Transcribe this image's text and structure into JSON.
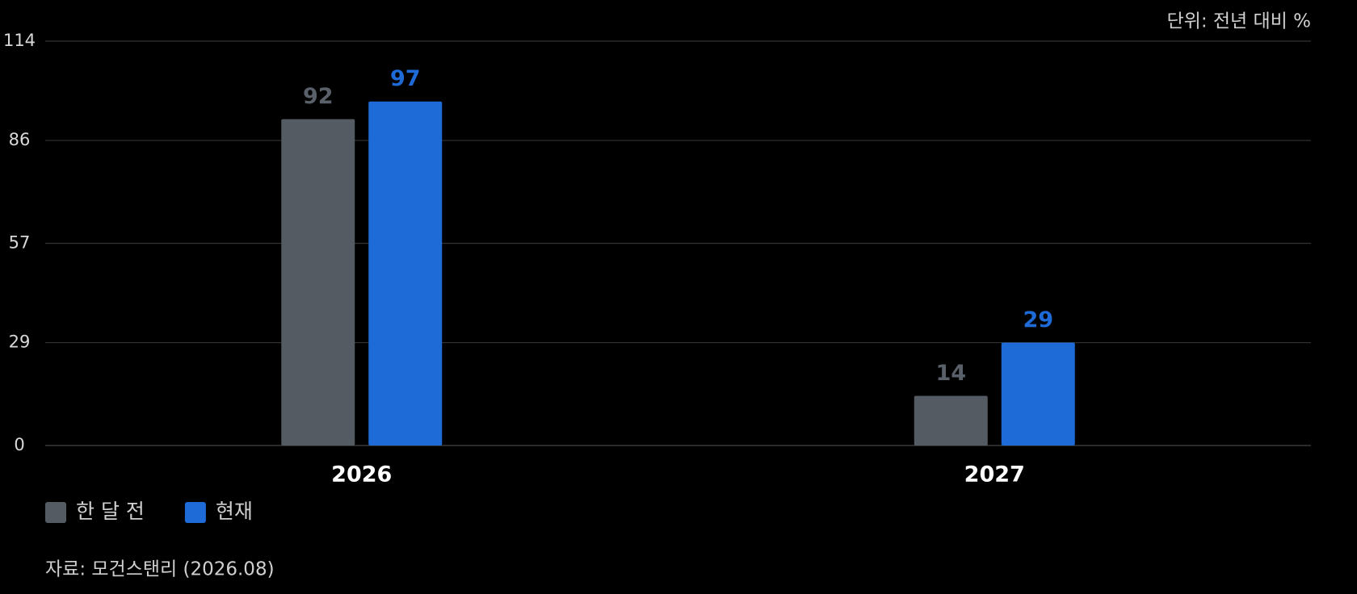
{
  "chart_data": {
    "type": "bar",
    "unit_label": "단위: 전년 대비 %",
    "source": "자료: 모건스탠리 (2026.08)",
    "categories": [
      "2026",
      "2027"
    ],
    "series": [
      {
        "name": "한 달 전",
        "color": "#555b63",
        "label_color": "#5a6069",
        "values": [
          92,
          14
        ]
      },
      {
        "name": "현재",
        "color": "#1e6ad6",
        "label_color": "#1e6ad6",
        "values": [
          97,
          29
        ]
      }
    ],
    "ylim": [
      0,
      114
    ],
    "yticks": [
      0,
      29,
      57,
      86,
      114
    ],
    "grid": true
  }
}
